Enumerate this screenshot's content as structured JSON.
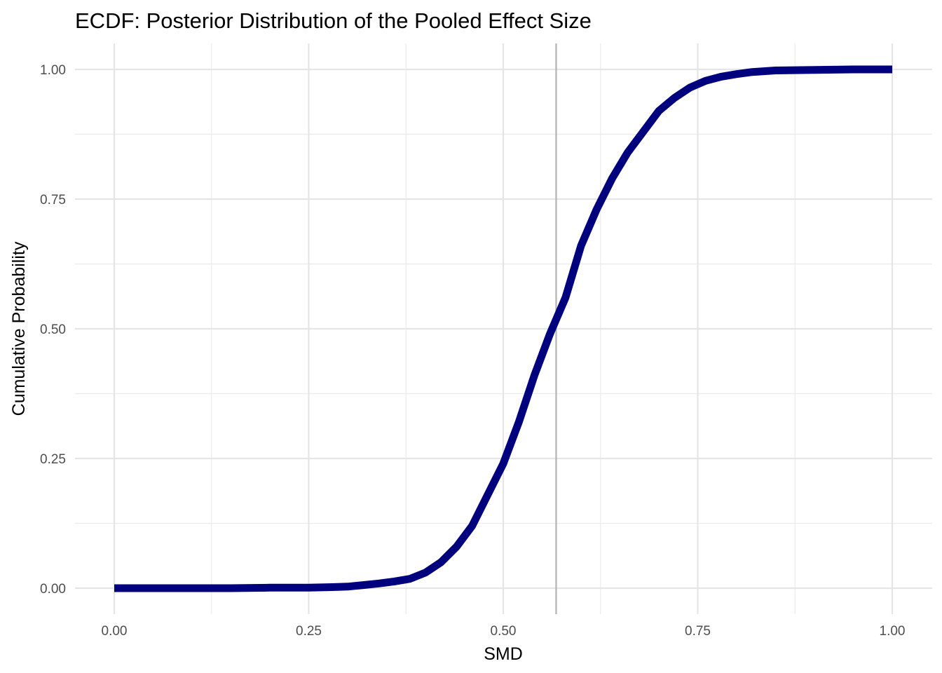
{
  "chart_data": {
    "type": "line",
    "title": "ECDF: Posterior Distribution of the Pooled Effect Size",
    "xlabel": "SMD",
    "ylabel": "Cumulative Probability",
    "xlim": [
      0,
      1
    ],
    "ylim": [
      0,
      1
    ],
    "x_ticks": [
      0,
      0.25,
      0.5,
      0.75,
      1.0
    ],
    "x_tick_labels": [
      "0.00",
      "0.25",
      "0.50",
      "0.75",
      "1.00"
    ],
    "y_ticks": [
      0,
      0.25,
      0.5,
      0.75,
      1.0
    ],
    "y_tick_labels": [
      "0.00",
      "0.25",
      "0.50",
      "0.75",
      "1.00"
    ],
    "grid": true,
    "reference_line": {
      "orientation": "vertical",
      "x": 0.568,
      "color": "#b3b3b3"
    },
    "series": [
      {
        "color": "#00007f",
        "x": [
          0.0,
          0.05,
          0.1,
          0.15,
          0.2,
          0.25,
          0.28,
          0.3,
          0.32,
          0.34,
          0.36,
          0.38,
          0.4,
          0.42,
          0.44,
          0.46,
          0.48,
          0.5,
          0.52,
          0.54,
          0.56,
          0.58,
          0.6,
          0.62,
          0.64,
          0.66,
          0.68,
          0.7,
          0.72,
          0.74,
          0.76,
          0.78,
          0.8,
          0.82,
          0.85,
          0.9,
          0.95,
          1.0
        ],
        "y": [
          0.0,
          0.0,
          0.0,
          0.0,
          0.001,
          0.001,
          0.002,
          0.003,
          0.006,
          0.009,
          0.013,
          0.018,
          0.03,
          0.05,
          0.08,
          0.12,
          0.18,
          0.24,
          0.32,
          0.41,
          0.49,
          0.56,
          0.66,
          0.73,
          0.79,
          0.84,
          0.88,
          0.92,
          0.945,
          0.965,
          0.978,
          0.986,
          0.991,
          0.995,
          0.998,
          0.999,
          1.0,
          1.0
        ]
      }
    ]
  }
}
